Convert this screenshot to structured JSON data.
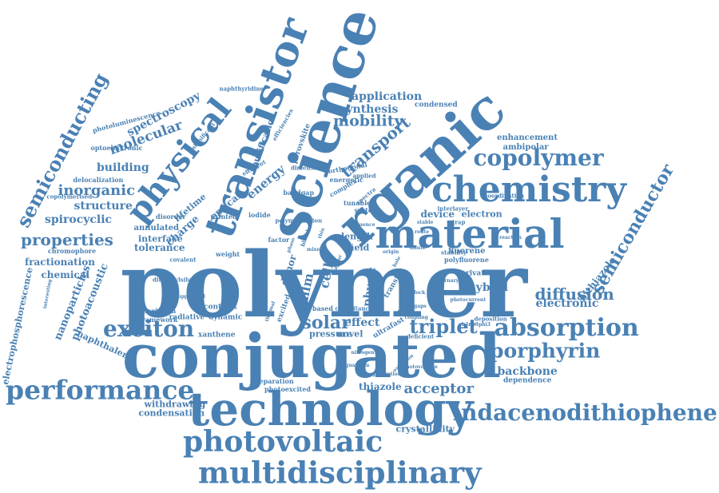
{
  "theme": {
    "word_color": "#4a81b4",
    "background": "#ffffff"
  },
  "words": [
    "polymer",
    "conjugated",
    "technology",
    "organic",
    "science",
    "transistor",
    "material",
    "chemistry",
    "physical",
    "photovoltaic",
    "multidisciplinary",
    "performance",
    "copolymer",
    "exciton",
    "absorption",
    "indacenodithiophene",
    "semiconducting",
    "semiconductor",
    "porphyrin",
    "triplet",
    "transport",
    "mobility",
    "properties",
    "acceptor",
    "diffusion",
    "solar",
    "inorganic",
    "molecular",
    "spectroscopy",
    "application",
    "synthesis",
    "energy",
    "building",
    "structure",
    "spirocyclic",
    "electronic",
    "hybrid",
    "effect",
    "cell",
    "film",
    "physic",
    "backbone",
    "fluorene",
    "bithiazole",
    "enhancement",
    "ambipolar",
    "thiazole",
    "nanoparticles",
    "photoacoustic",
    "electrophosphorescence",
    "naphthalene",
    "crystallinity",
    "condensation",
    "withdrawing",
    "fractionation",
    "chemical",
    "tolerance",
    "interface",
    "annulated",
    "lifetime",
    "charge",
    "optical",
    "device",
    "electron",
    "length",
    "field",
    "pressure",
    "novel",
    "emission",
    "donor",
    "condensed",
    "purification",
    "perovskite",
    "photoluminescence",
    "optoelectronic",
    "delocalization",
    "copolymerised",
    "naphthyridine",
    "bandgap",
    "complex",
    "tunable",
    "system",
    "spectra",
    "polyfluorene",
    "derivative",
    "dependence",
    "separation",
    "deficient",
    "photoexcited",
    "xanthene",
    "radiative",
    "dynamic",
    "maximum",
    "framework",
    "contrast",
    "weight",
    "disorder",
    "printed",
    "iodide",
    "factor",
    "ultrafast",
    "excited",
    "based",
    "transfer",
    "voltage",
    "efficient",
    "orthogonal",
    "energetic",
    "significant",
    "applied",
    "origin",
    "deposition",
    "coordination",
    "chromophore",
    "efficiencies",
    "dimensional",
    "influence",
    "route",
    "reaction",
    "stability",
    "hole",
    "blend",
    "thin",
    "polymerization",
    "phase",
    "mixed",
    "vapour",
    "dilute",
    "trap",
    "stable",
    "interlayer",
    "ch3nh3pbi3",
    "photocurrent",
    "interesting",
    "dithienylsilole",
    "covalent",
    "thermal",
    "capacitance",
    "block",
    "nitrogen",
    "ternary",
    "photovoltage",
    "generation",
    "quantum",
    "oxidation",
    "gaps",
    "coupling",
    "suppressed",
    "localized",
    "solution"
  ]
}
